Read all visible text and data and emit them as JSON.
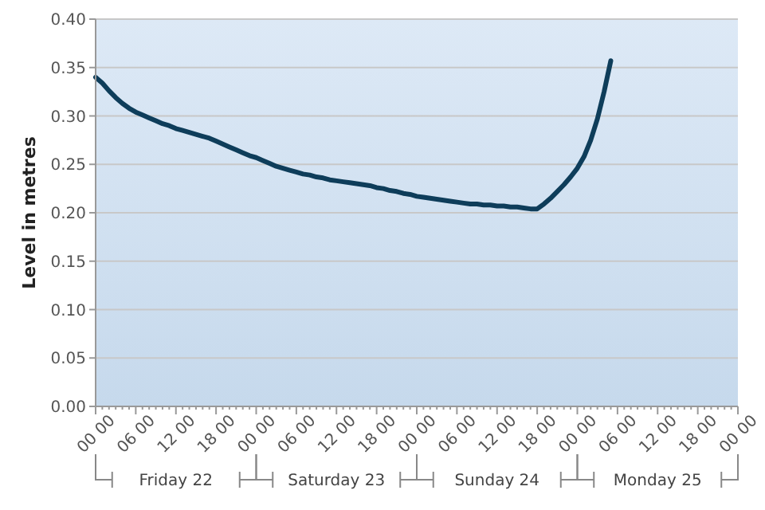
{
  "chart_data": {
    "type": "line",
    "ylabel": "Level in metres",
    "ylim": [
      0,
      0.4
    ],
    "yticks": [
      {
        "value": 0,
        "label": "0.00"
      },
      {
        "value": 0.05,
        "label": "0.05"
      },
      {
        "value": 0.1,
        "label": "0.10"
      },
      {
        "value": 0.15,
        "label": "0.15"
      },
      {
        "value": 0.2,
        "label": "0.20"
      },
      {
        "value": 0.25,
        "label": "0.25"
      },
      {
        "value": 0.3,
        "label": "0.30"
      },
      {
        "value": 0.35,
        "label": "0.35"
      },
      {
        "value": 0.4,
        "label": "0.40"
      }
    ],
    "categories": [
      "00 00",
      null,
      null,
      null,
      null,
      null,
      "06 00",
      null,
      null,
      null,
      null,
      null,
      "12 00",
      null,
      null,
      null,
      null,
      null,
      "18 00",
      null,
      null,
      null,
      null,
      null,
      "00 00",
      null,
      null,
      null,
      null,
      null,
      "06 00",
      null,
      null,
      null,
      null,
      null,
      "12 00",
      null,
      null,
      null,
      null,
      null,
      "18 00",
      null,
      null,
      null,
      null,
      null,
      "00 00",
      null,
      null,
      null,
      null,
      null,
      "06 00",
      null,
      null,
      null,
      null,
      null,
      "12 00",
      null,
      null,
      null,
      null,
      null,
      "18 00",
      null,
      null,
      null,
      null,
      null,
      "00 00",
      null,
      null,
      null,
      null,
      null,
      "06 00",
      null,
      null,
      null,
      null,
      null,
      "12 00",
      null,
      null,
      null,
      null,
      null,
      "18 00",
      null,
      null,
      null,
      null,
      null,
      "00 00"
    ],
    "grid": "y",
    "marker": "none",
    "line_style": "solid",
    "annotations": [
      "Friday 22",
      "Saturday 23",
      "Sunday 24",
      "Monday 25"
    ],
    "series": [
      {
        "color": "#0e3d5a",
        "values": [
          0.34,
          0.334,
          0.326,
          0.319,
          0.313,
          0.308,
          0.304,
          0.301,
          0.298,
          0.295,
          0.292,
          0.29,
          0.287,
          0.285,
          0.283,
          0.281,
          0.279,
          0.277,
          0.274,
          0.271,
          0.268,
          0.265,
          0.262,
          0.259,
          0.257,
          0.254,
          0.251,
          0.248,
          0.246,
          0.244,
          0.242,
          0.24,
          0.239,
          0.237,
          0.236,
          0.234,
          0.233,
          0.232,
          0.231,
          0.23,
          0.229,
          0.228,
          0.226,
          0.225,
          0.223,
          0.222,
          0.22,
          0.219,
          0.217,
          0.216,
          0.215,
          0.214,
          0.213,
          0.212,
          0.211,
          0.21,
          0.209,
          0.209,
          0.208,
          0.208,
          0.207,
          0.207,
          0.206,
          0.206,
          0.205,
          0.204,
          0.204,
          0.209,
          0.215,
          0.222,
          0.229,
          0.237,
          0.246,
          0.258,
          0.275,
          0.297,
          0.325,
          0.357,
          null,
          null,
          null,
          null,
          null,
          null,
          null,
          null,
          null,
          null,
          null,
          null,
          null,
          null,
          null,
          null,
          null,
          null,
          null
        ]
      }
    ]
  }
}
